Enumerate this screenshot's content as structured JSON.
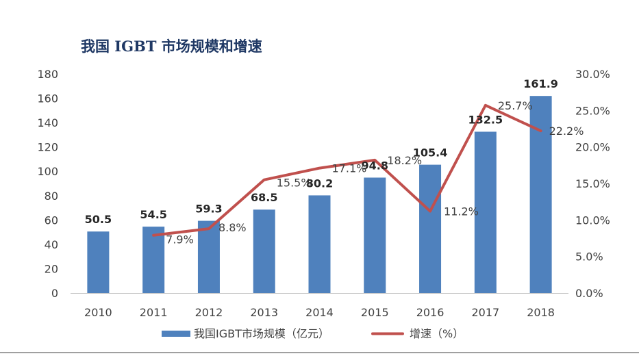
{
  "chart_data": {
    "type": "bar+line",
    "title": "我国 IGBT 市场规模和增速",
    "categories": [
      "2010",
      "2011",
      "2012",
      "2013",
      "2014",
      "2015",
      "2016",
      "2017",
      "2018"
    ],
    "series": [
      {
        "name": "我国IGBT市场规模（亿元）",
        "type": "bar",
        "axis": "left",
        "color": "#4f81bd",
        "values": [
          50.5,
          54.5,
          59.3,
          68.5,
          80.2,
          94.8,
          105.4,
          132.5,
          161.9
        ],
        "labels": [
          "50.5",
          "54.5",
          "59.3",
          "68.5",
          "80.2",
          "94.8",
          "105.4",
          "132.5",
          "161.9"
        ]
      },
      {
        "name": "增速（%）",
        "type": "line",
        "axis": "right",
        "color": "#c0504d",
        "values": [
          null,
          7.9,
          8.8,
          15.5,
          17.1,
          18.2,
          11.2,
          25.7,
          22.2
        ],
        "labels": [
          "",
          "7.9%",
          "8.8%",
          "15.5%",
          "17.1%",
          "18.2%",
          "11.2%",
          "25.7%",
          "22.2%"
        ]
      }
    ],
    "y_left": {
      "min": 0,
      "max": 180,
      "ticks": [
        "0",
        "20",
        "40",
        "60",
        "80",
        "100",
        "120",
        "140",
        "160",
        "180"
      ]
    },
    "y_right": {
      "min": 0,
      "max": 30,
      "ticks": [
        "0.0%",
        "5.0%",
        "10.0%",
        "15.0%",
        "20.0%",
        "25.0%",
        "30.0%"
      ]
    },
    "grid": false,
    "legend_position": "bottom"
  }
}
